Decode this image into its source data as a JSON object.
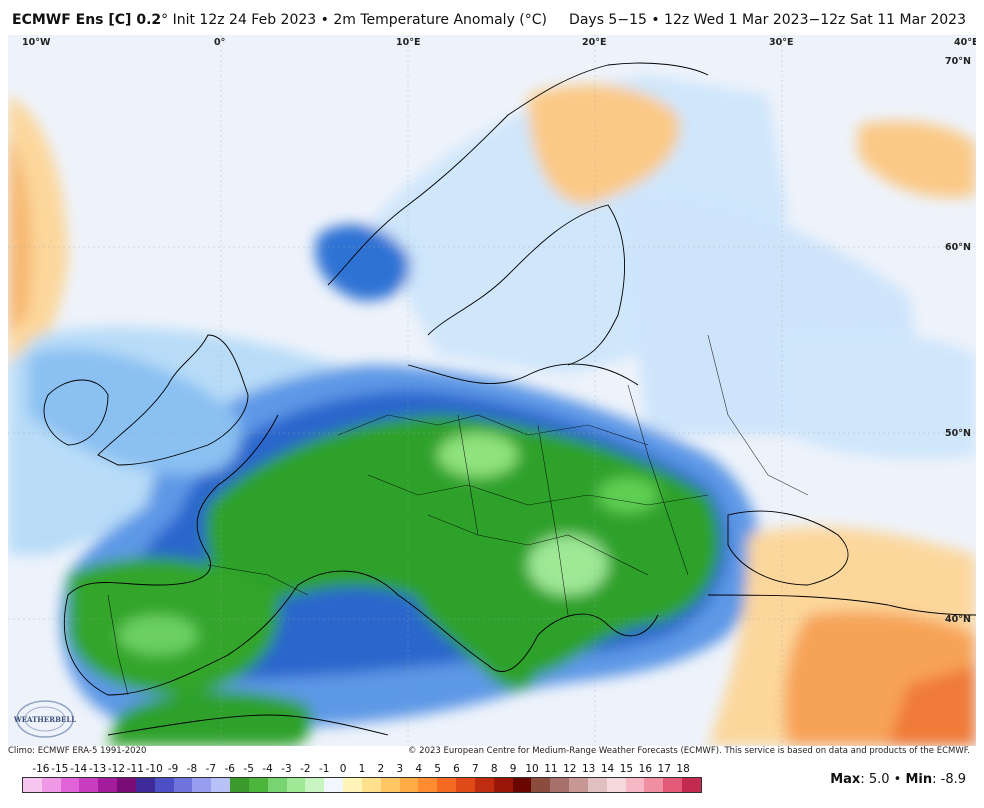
{
  "header": {
    "model": "ECMWF Ens [C] 0.2",
    "init": "° Init 12z 24 Feb 2023 • 2m Temperature Anomaly (°C)",
    "period": "Days 5−15 • 12z Wed 1 Mar 2023−12z Sat 11 Mar 2023"
  },
  "lon_labels": [
    "10°W",
    "0°",
    "10°E",
    "20°E",
    "30°E",
    "40°E"
  ],
  "lat_labels": [
    "70°N",
    "60°N",
    "50°N",
    "40°N"
  ],
  "footer": {
    "climo": "Climo: ECMWF ERA-5 1991-2020",
    "credit": "© 2023 European Centre for Medium-Range Weather Forecasts (ECMWF). This service is based on data and products of the ECMWF."
  },
  "logo_text": "WEATHERBELL",
  "colorbar": {
    "labels": [
      "-16",
      "-15",
      "-14",
      "-13",
      "-12",
      "-11",
      "-10",
      "-9",
      "-8",
      "-7",
      "-6",
      "-5",
      "-4",
      "-3",
      "-2",
      "-1",
      "0",
      "1",
      "2",
      "3",
      "4",
      "5",
      "6",
      "7",
      "8",
      "9",
      "10",
      "11",
      "12",
      "13",
      "14",
      "15",
      "16",
      "17",
      "18"
    ],
    "colors": [
      "#f7c6f0",
      "#ee98e6",
      "#e064d8",
      "#c83cc0",
      "#a21c9c",
      "#7a0c78",
      "#3e2a98",
      "#4d4fc4",
      "#6f73dc",
      "#9a9ef0",
      "#b8c2f8",
      "#3a9a2c",
      "#4cb63c",
      "#78d470",
      "#9ee896",
      "#c8f4c2",
      "#f2f7ff",
      "#fff4b8",
      "#ffe08c",
      "#ffc664",
      "#ffac46",
      "#ff8c30",
      "#f46a22",
      "#e04a18",
      "#c02c10",
      "#9a1608",
      "#6a0600",
      "#8a4c3c",
      "#a8706a",
      "#c89894",
      "#e0c0c0",
      "#f4d8dc",
      "#f6b8c4",
      "#f08ea2",
      "#e25a78",
      "#c22a50"
    ]
  },
  "stats": {
    "max_label": "Max",
    "max_value": ": 5.0 • ",
    "min_label": "Min",
    "min_value": ": -8.9"
  },
  "colors": {
    "ocean_pale": "#e8f0fb",
    "cold": "#2a6ad0",
    "very_cold": "#22a22c",
    "warm": "#f7b262"
  }
}
